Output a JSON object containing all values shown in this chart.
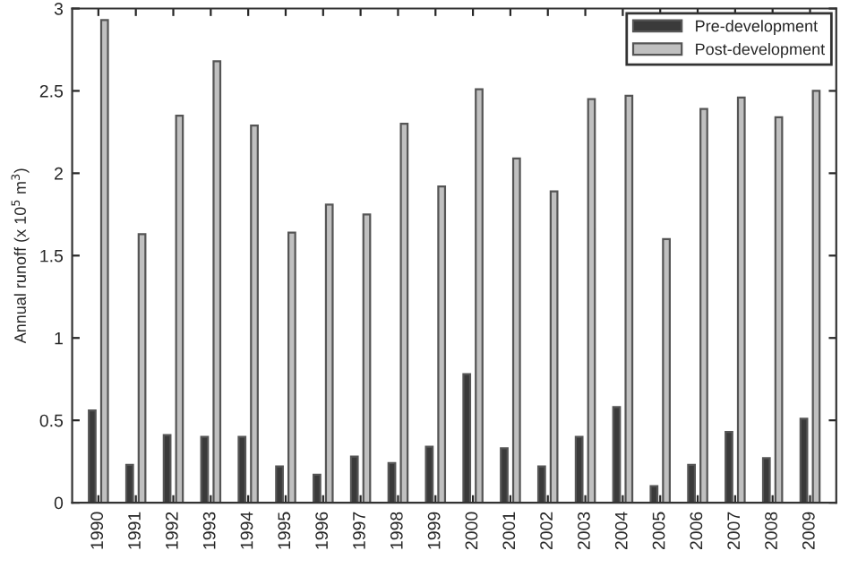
{
  "chart_data": {
    "type": "bar",
    "ylabel": "Annual runoff (x 10$^{5}$ m$^{3}$)",
    "categories": [
      "1990",
      "1991",
      "1992",
      "1993",
      "1994",
      "1995",
      "1996",
      "1997",
      "1998",
      "1999",
      "2000",
      "2001",
      "2002",
      "2003",
      "2004",
      "2005",
      "2006",
      "2007",
      "2008",
      "2009"
    ],
    "series": [
      {
        "name": "Pre-development",
        "color": "#3a3a3a",
        "values": [
          0.56,
          0.23,
          0.41,
          0.4,
          0.4,
          0.22,
          0.17,
          0.28,
          0.24,
          0.34,
          0.78,
          0.33,
          0.22,
          0.4,
          0.58,
          0.1,
          0.23,
          0.43,
          0.27,
          0.51
        ]
      },
      {
        "name": "Post-development",
        "color": "#c0c0c0",
        "values": [
          2.93,
          1.63,
          2.35,
          2.68,
          2.29,
          1.64,
          1.81,
          1.75,
          2.3,
          1.92,
          2.51,
          2.09,
          1.89,
          2.45,
          2.47,
          1.6,
          2.39,
          2.46,
          2.34,
          2.5
        ]
      }
    ],
    "ylim": [
      0,
      3
    ],
    "yticks": [
      0,
      0.5,
      1,
      1.5,
      2,
      2.5,
      3
    ],
    "grid": false,
    "legend": "top right"
  }
}
